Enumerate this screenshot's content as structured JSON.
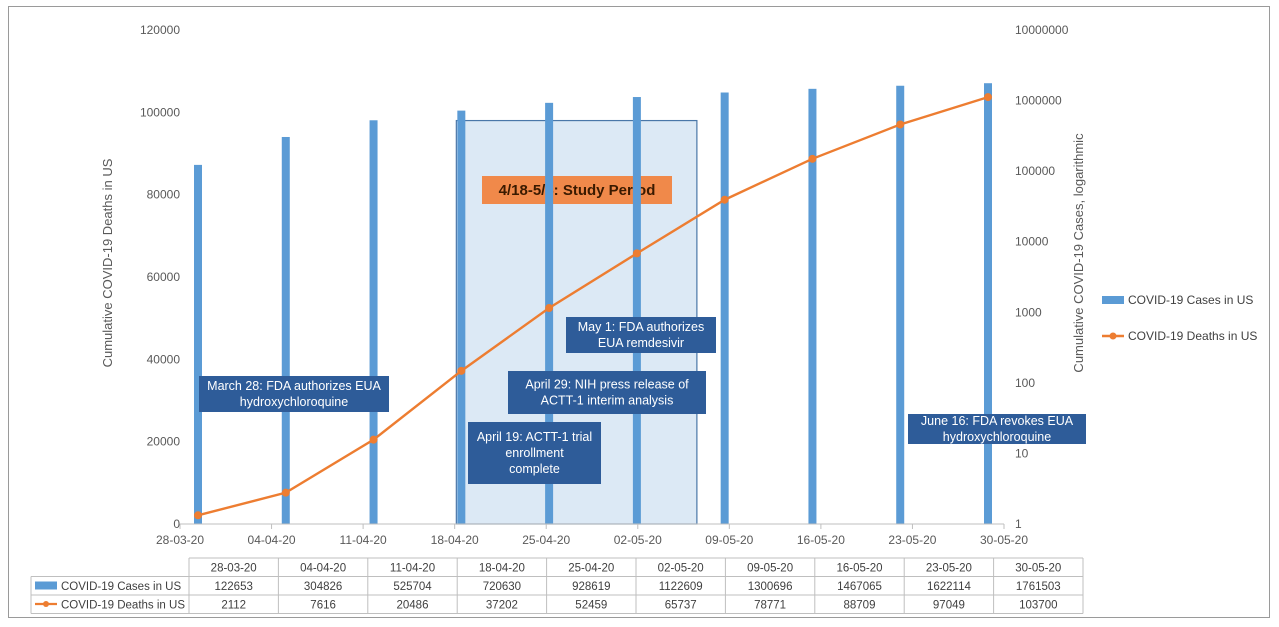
{
  "chart_data": {
    "type": "bar+line",
    "categories": [
      "28-03-20",
      "04-04-20",
      "11-04-20",
      "18-04-20",
      "25-04-20",
      "02-05-20",
      "09-05-20",
      "16-05-20",
      "23-05-20",
      "30-05-20"
    ],
    "series": [
      {
        "name": "COVID-19 Cases in US",
        "type": "bar",
        "axis": "right-log",
        "color": "#5b9bd5",
        "values": [
          122653,
          304826,
          525704,
          720630,
          928619,
          1122609,
          1300696,
          1467065,
          1622114,
          1761503
        ]
      },
      {
        "name": "COVID-19 Deaths in US",
        "type": "line",
        "axis": "left",
        "color": "#ed7d31",
        "values": [
          2112,
          7616,
          20486,
          37202,
          52459,
          65737,
          78771,
          88709,
          97049,
          103700
        ]
      }
    ],
    "ylabel": "Cumulative COVID-19 Deaths in US",
    "ylabel_right": "Cumulative COVID-19 Cases, logarithmic",
    "ylim": [
      0,
      120000
    ],
    "ylim_right": [
      1,
      10000000
    ],
    "yscale_right": "log",
    "yticks": [
      "0",
      "20000",
      "40000",
      "60000",
      "80000",
      "100000",
      "120000"
    ],
    "yticks_right": [
      "1",
      "10",
      "100",
      "1000",
      "10000",
      "100000",
      "1000000",
      "10000000"
    ],
    "legend_position": "right",
    "study_period": {
      "label": "4/18-5/8: Study Period",
      "from": "18-04-20",
      "to": "08-05-20"
    },
    "annotations": [
      {
        "lines": [
          "March 28: FDA authorizes EUA",
          "hydroxychloroquine"
        ]
      },
      {
        "lines": [
          "April 19: ACTT-1 trial",
          "enrollment",
          "complete"
        ]
      },
      {
        "lines": [
          "April 29: NIH press release of",
          "ACTT-1 interim analysis"
        ]
      },
      {
        "lines": [
          "May 1: FDA authorizes",
          "EUA remdesivir"
        ]
      },
      {
        "lines": [
          "June 16: FDA revokes EUA",
          "hydroxychloroquine"
        ]
      }
    ],
    "table": {
      "header": [
        "28-03-20",
        "04-04-20",
        "11-04-20",
        "18-04-20",
        "25-04-20",
        "02-05-20",
        "09-05-20",
        "16-05-20",
        "23-05-20",
        "30-05-20"
      ],
      "rows": [
        {
          "label": "COVID-19 Cases in US",
          "values": [
            "122653",
            "304826",
            "525704",
            "720630",
            "928619",
            "1122609",
            "1300696",
            "1467065",
            "1622114",
            "1761503"
          ]
        },
        {
          "label": "COVID-19 Deaths in US",
          "values": [
            "2112",
            "7616",
            "20486",
            "37202",
            "52459",
            "65737",
            "78771",
            "88709",
            "97049",
            "103700"
          ]
        }
      ]
    }
  }
}
